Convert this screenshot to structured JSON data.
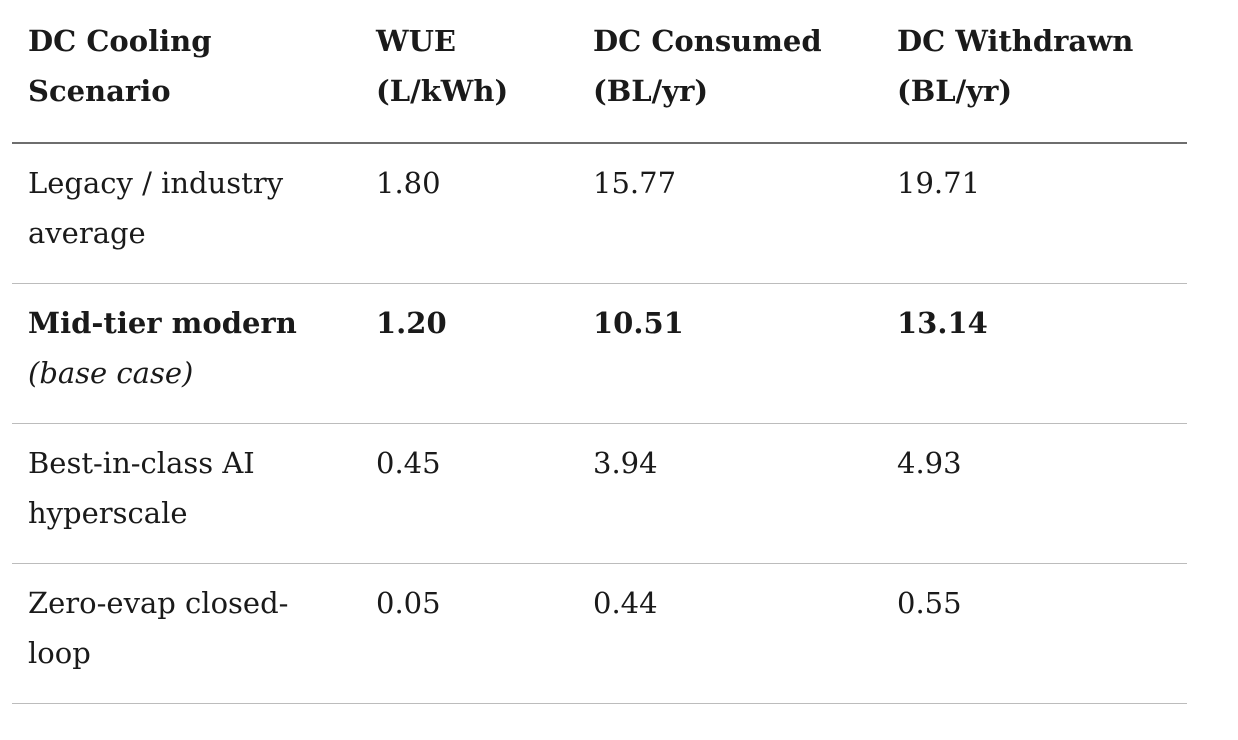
{
  "colors": {
    "background": "#ffffff",
    "text": "#1a1a1a",
    "header_rule": "#6e6e6e",
    "row_rule": "#bcbcbc"
  },
  "table": {
    "columns": [
      "DC Cooling Scenario",
      "WUE (L/kWh)",
      "DC Consumed (BL/yr)",
      "DC Withdrawn (BL/yr)"
    ],
    "rows": [
      {
        "scenario": "Legacy / industry average",
        "note": "",
        "wue": "1.80",
        "consumed": "15.77",
        "withdrawn": "19.71",
        "emphasis": false
      },
      {
        "scenario": "Mid-tier modern",
        "note": "(base case)",
        "wue": "1.20",
        "consumed": "10.51",
        "withdrawn": "13.14",
        "emphasis": true
      },
      {
        "scenario": "Best-in-class AI hyperscale",
        "note": "",
        "wue": "0.45",
        "consumed": "3.94",
        "withdrawn": "4.93",
        "emphasis": false
      },
      {
        "scenario": "Zero-evap closed-loop",
        "note": "",
        "wue": "0.05",
        "consumed": "0.44",
        "withdrawn": "0.55",
        "emphasis": false
      }
    ]
  },
  "chart_data": {
    "type": "table",
    "columns": [
      "DC Cooling Scenario",
      "WUE (L/kWh)",
      "DC Consumed (BL/yr)",
      "DC Withdrawn (BL/yr)"
    ],
    "rows": [
      [
        "Legacy / industry average",
        1.8,
        15.77,
        19.71
      ],
      [
        "Mid-tier modern (base case)",
        1.2,
        10.51,
        13.14
      ],
      [
        "Best-in-class AI hyperscale",
        0.45,
        3.94,
        4.93
      ],
      [
        "Zero-evap closed-loop",
        0.05,
        0.44,
        0.55
      ]
    ]
  }
}
